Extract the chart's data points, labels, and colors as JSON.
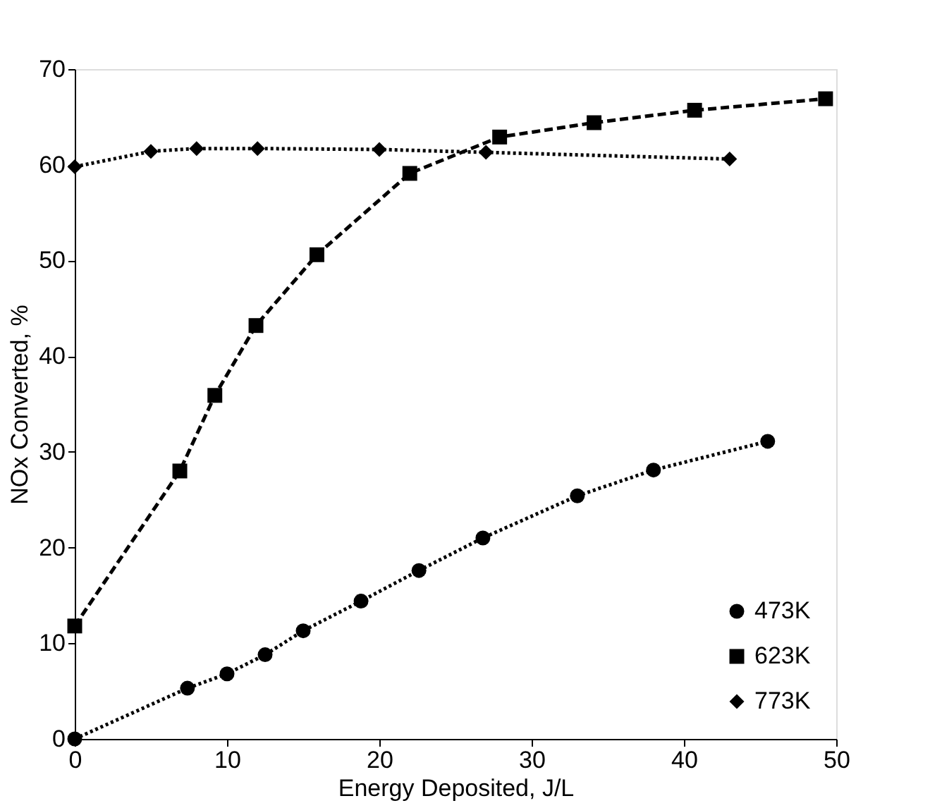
{
  "chart_data": {
    "type": "line",
    "xlabel": "Energy Deposited, J/L",
    "ylabel": "NOx Converted, %",
    "xlim": [
      0,
      50
    ],
    "xticks": [
      0,
      10,
      20,
      30,
      40,
      50
    ],
    "ylim": [
      0,
      70
    ],
    "yticks": [
      0,
      10,
      20,
      30,
      40,
      50,
      60,
      70
    ],
    "grid": false,
    "legend": "bottom right",
    "series": [
      {
        "name": "473K",
        "color": "#000000",
        "marker": "circle",
        "line_style": "dotted",
        "x": [
          0,
          7.4,
          10,
          12.5,
          15,
          18.8,
          22.6,
          26.8,
          33,
          38,
          45.5
        ],
        "values": [
          0,
          5.3,
          6.8,
          8.8,
          11.3,
          14.4,
          17.6,
          21,
          25.4,
          28.1,
          31.1
        ]
      },
      {
        "name": "623K",
        "color": "#000000",
        "marker": "square",
        "line_style": "dashed",
        "x": [
          0,
          6.9,
          9.2,
          11.9,
          15.9,
          22,
          27.9,
          34.1,
          40.7,
          49.3
        ],
        "values": [
          11.8,
          28,
          35.9,
          43.2,
          50.6,
          59.1,
          62.9,
          64.4,
          65.7,
          66.9
        ]
      },
      {
        "name": "773K",
        "color": "#000000",
        "marker": "diamond",
        "line_style": "dotted",
        "x": [
          0,
          5,
          8,
          12,
          20,
          27,
          43
        ],
        "values": [
          59.8,
          61.4,
          61.7,
          61.7,
          61.6,
          61.3,
          60.6
        ]
      }
    ]
  }
}
